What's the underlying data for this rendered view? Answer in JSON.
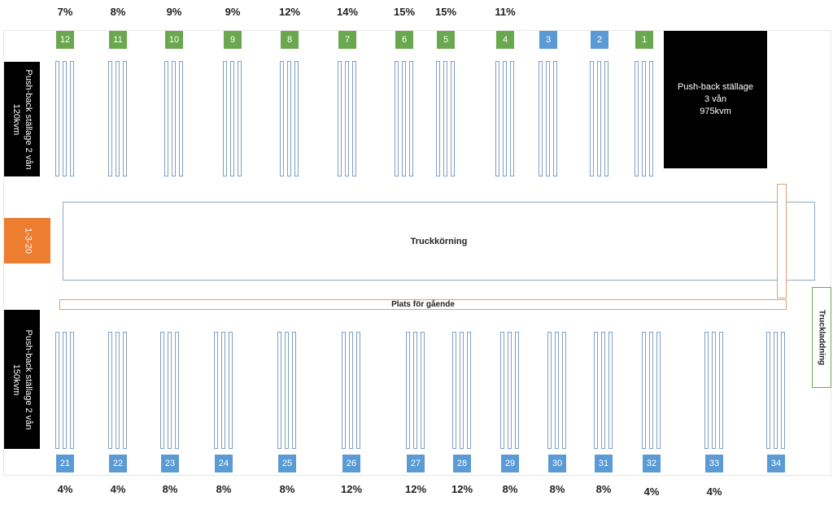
{
  "areas": {
    "drive": "Truckkörning",
    "walk": "Plats för gående",
    "charge": "Truckladdning",
    "orange_block": "1-3-20",
    "top_left_block": [
      "Push-back ställage 2 vån",
      "120kvm"
    ],
    "bottom_left_block": [
      "Push-back ställage 2 vån",
      "150kvm"
    ],
    "top_right_block": [
      "Push-back ställage",
      "3 vån",
      "975kvm"
    ]
  },
  "top_racks": [
    {
      "id": "12",
      "pct": "7%",
      "color": "green"
    },
    {
      "id": "11",
      "pct": "8%",
      "color": "green"
    },
    {
      "id": "10",
      "pct": "9%",
      "color": "green"
    },
    {
      "id": "9",
      "pct": "9%",
      "color": "green"
    },
    {
      "id": "8",
      "pct": "12%",
      "color": "green"
    },
    {
      "id": "7",
      "pct": "14%",
      "color": "green"
    },
    {
      "id": "6",
      "pct": "15%",
      "color": "green"
    },
    {
      "id": "5",
      "pct": "15%",
      "color": "green"
    },
    {
      "id": "4",
      "pct": "11%",
      "color": "green"
    },
    {
      "id": "3",
      "pct": "",
      "color": "blue"
    },
    {
      "id": "2",
      "pct": "",
      "color": "blue"
    },
    {
      "id": "1",
      "pct": "",
      "color": "green"
    }
  ],
  "bottom_racks": [
    {
      "id": "21",
      "pct": "4%"
    },
    {
      "id": "22",
      "pct": "4%"
    },
    {
      "id": "23",
      "pct": "8%"
    },
    {
      "id": "24",
      "pct": "8%"
    },
    {
      "id": "25",
      "pct": "8%"
    },
    {
      "id": "26",
      "pct": "12%"
    },
    {
      "id": "27",
      "pct": "12%"
    },
    {
      "id": "28",
      "pct": "12%"
    },
    {
      "id": "29",
      "pct": "8%"
    },
    {
      "id": "30",
      "pct": "8%"
    },
    {
      "id": "31",
      "pct": "8%"
    },
    {
      "id": "32",
      "pct": "4%"
    },
    {
      "id": "33",
      "pct": "4%"
    },
    {
      "id": "34",
      "pct": ""
    }
  ],
  "colors": {
    "green": "#6aa84f",
    "blue": "#5b9bd5",
    "orange": "#ed7d31",
    "black": "#000000",
    "outline": "#7fa0c4"
  }
}
